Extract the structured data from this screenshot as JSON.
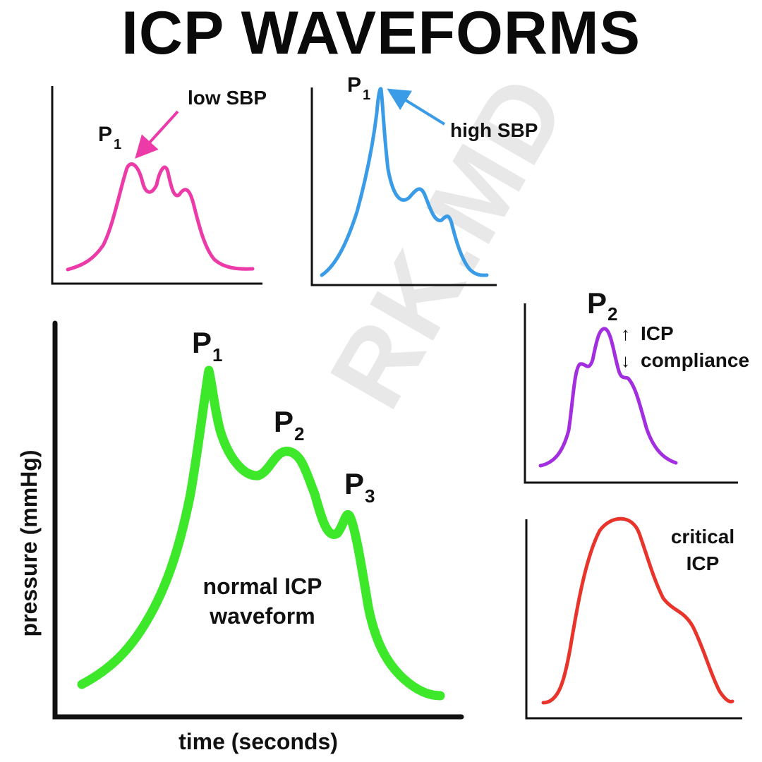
{
  "title": "ICP WAVEFORMS",
  "watermark": "RK.MD",
  "colors": {
    "normal": "#3de82a",
    "low_sbp": "#ec3aa8",
    "high_sbp": "#3a9be6",
    "raised_icp": "#a22ee0",
    "critical": "#e8342a",
    "axes": "#111111"
  },
  "panels": {
    "low_sbp": {
      "peak": "P",
      "peak_sub": "1",
      "annotation": "low SBP"
    },
    "high_sbp": {
      "peak": "P",
      "peak_sub": "1",
      "annotation": "high SBP"
    },
    "normal": {
      "p1": "P",
      "p1_sub": "1",
      "p2": "P",
      "p2_sub": "2",
      "p3": "P",
      "p3_sub": "3",
      "caption_line1": "normal ICP",
      "caption_line2": "waveform",
      "y_axis_label": "pressure (mmHg)",
      "x_axis_label": "time (seconds)"
    },
    "raised_icp": {
      "peak": "P",
      "peak_sub": "2",
      "arrow_up": "↑",
      "line1": "ICP",
      "arrow_down": "↓",
      "line2": "compliance"
    },
    "critical": {
      "line1": "critical",
      "line2": "ICP"
    }
  }
}
